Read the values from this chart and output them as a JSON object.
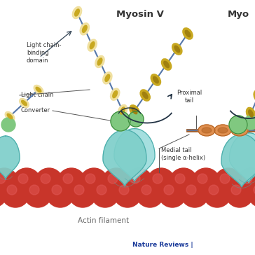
{
  "bg_color": "#ffffff",
  "title": "Myosin V",
  "title2": "Myo",
  "actin_label": "Actin filament",
  "nature_reviews": "Nature Reviews |",
  "labels": {
    "light_chain_binding": "Light chain-\nbinding\ndomain",
    "light_chain": "Light chain",
    "converter": "Converter",
    "proximal_tail": "Proximal\ntail",
    "medial_tail": "Medial tail\n(single α-helix)"
  },
  "colors": {
    "actin": "#c8352a",
    "motor_domain": "#7ecfca",
    "motor_domain_edge": "#4aacaa",
    "lever_bead_light": "#f0e0a0",
    "lever_bead_dark": "#c8a820",
    "lever_line": "#5577aa",
    "converter_green": "#80c880",
    "converter_green_dark": "#3a8a3a",
    "proximal_orange": "#e09050",
    "proximal_orange_dark": "#b06020",
    "proximal_stick": "#a06030",
    "text_dark": "#333333",
    "text_gray": "#666666",
    "text_blue": "#1a3a9a",
    "arrow_color": "#223344"
  }
}
